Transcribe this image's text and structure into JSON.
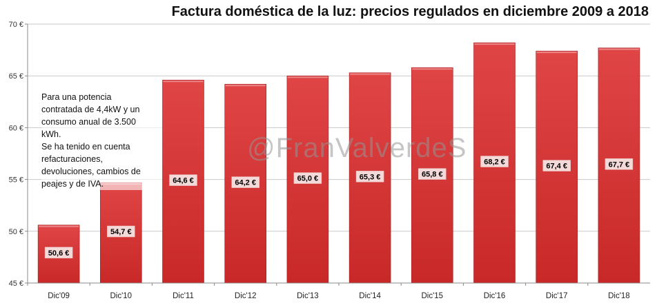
{
  "chart_data": {
    "type": "bar",
    "title": "Factura doméstica de la luz: precios regulados en diciembre 2009 a 2018",
    "categories": [
      "Dic'09",
      "Dic'10",
      "Dic'11",
      "Dic'12",
      "Dic'13",
      "Dic'14",
      "Dic'15",
      "Dic'16",
      "Dic'17",
      "Dic'18"
    ],
    "values": [
      50.6,
      54.7,
      64.6,
      64.2,
      65.0,
      65.3,
      65.8,
      68.2,
      67.4,
      67.7
    ],
    "value_labels": [
      "50,6 €",
      "54,7 €",
      "64,6 €",
      "64,2 €",
      "65,0 €",
      "65,3 €",
      "65,8 €",
      "68,2 €",
      "67,4 €",
      "67,7 €"
    ],
    "yticks": [
      45,
      50,
      55,
      60,
      65,
      70
    ],
    "ytick_labels": [
      "45 €",
      "50 €",
      "55 €",
      "60 €",
      "65 €",
      "70 €"
    ],
    "ylim": [
      45,
      70
    ],
    "grid": true,
    "bar_color": "#d93636",
    "annotation_lines": [
      "Para una potencia",
      "contratada de 4,4kW y un",
      "consumo anual de 3.500",
      "kWh.",
      "Se ha tenido en cuenta",
      "refacturaciones,",
      "devoluciones, cambios de",
      "peajes y  de IVA."
    ]
  },
  "watermark_text": "@FranValverdeS"
}
